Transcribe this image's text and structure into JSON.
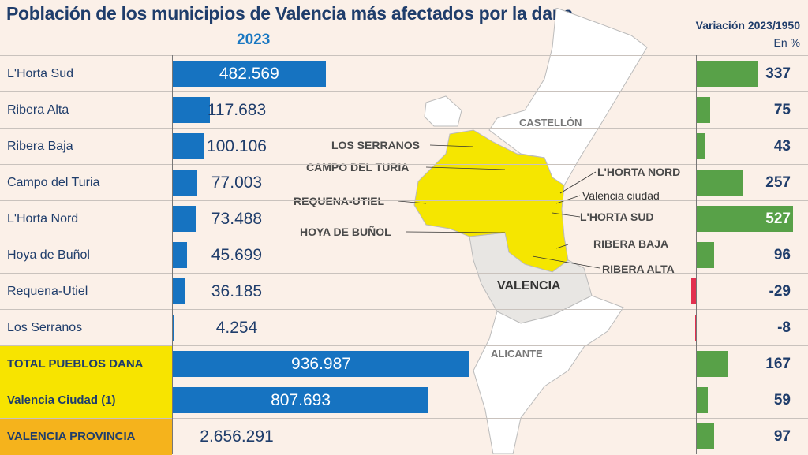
{
  "title": "Población de los municipios de Valencia más afectados por la dana",
  "colors": {
    "population_bar": "#1673c1",
    "positive_bar": "#58a148",
    "negative_bar": "#e2304f",
    "highlight": "#f7e400",
    "province": "#f5b31c",
    "affected_area": "#f5e600"
  },
  "chart_data": [
    {
      "type": "bar",
      "title": "2023",
      "orientation": "horizontal",
      "categories": [
        "L'Horta Sud",
        "Ribera Alta",
        "Ribera Baja",
        "Campo del Turia",
        "L'Horta Nord",
        "Hoya de Buñol",
        "Requena-Utiel",
        "Los Serranos",
        "TOTAL PUEBLOS DANA",
        "Valencia Ciudad (1)",
        "VALENCIA PROVINCIA"
      ],
      "values": [
        482569,
        117683,
        100106,
        77003,
        73488,
        45699,
        36185,
        4254,
        936987,
        807693,
        2656291
      ],
      "labels": [
        "482.569",
        "117.683",
        "100.106",
        "77.003",
        "73.488",
        "45.699",
        "36.185",
        "4.254",
        "936.987",
        "807.693",
        "2.656.291"
      ],
      "bar_drawn": [
        true,
        true,
        true,
        true,
        true,
        true,
        true,
        true,
        true,
        true,
        false
      ]
    },
    {
      "type": "bar",
      "title": "Variación 2023/1950",
      "unit": "En %",
      "orientation": "horizontal",
      "values": [
        337,
        75,
        43,
        257,
        527,
        96,
        -29,
        -8,
        167,
        59,
        97
      ],
      "labels": [
        "337",
        "75",
        "43",
        "257",
        "527",
        "96",
        "-29",
        "-8",
        "167",
        "59",
        "97"
      ]
    }
  ],
  "map": {
    "provinces": [
      "CASTELLÓN",
      "VALENCIA",
      "ALICANTE"
    ],
    "comarcas": [
      "LOS SERRANOS",
      "CAMPO DEL TURIA",
      "REQUENA-UTIEL",
      "HOYA DE BUÑOL",
      "L'HORTA NORD",
      "Valencia ciudad",
      "L'HORTA SUD",
      "RIBERA BAJA",
      "RIBERA ALTA"
    ]
  }
}
